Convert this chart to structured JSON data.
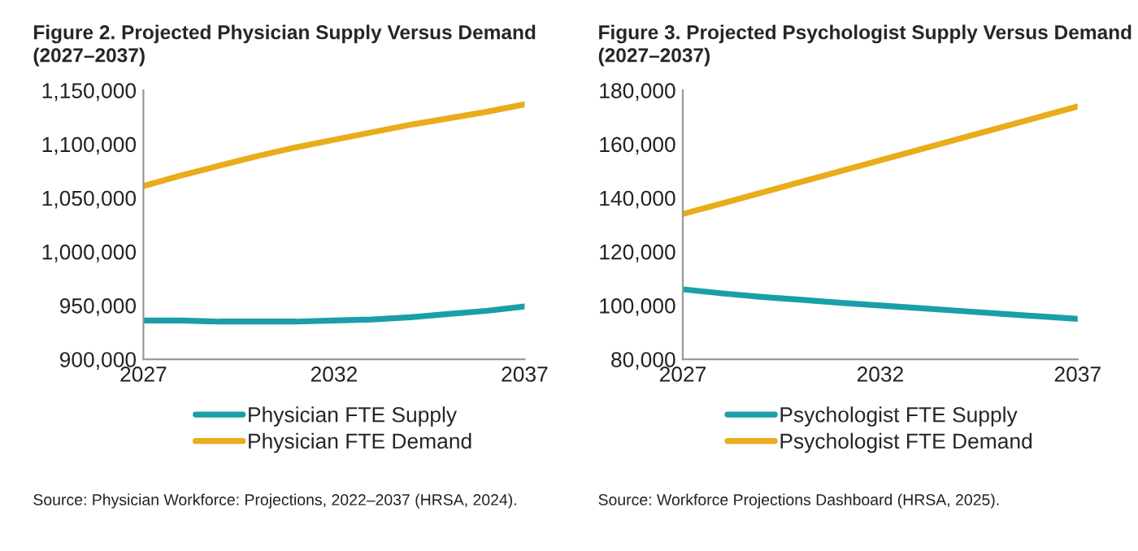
{
  "chart_data": [
    {
      "type": "line",
      "title": "Figure 2. Projected Physician Supply Versus Demand\n(2027–2037)",
      "x": [
        2027,
        2028,
        2029,
        2030,
        2031,
        2032,
        2033,
        2034,
        2035,
        2036,
        2037
      ],
      "series": [
        {
          "name": "Physician FTE Supply",
          "color": "#1a9fa8",
          "values": [
            936000,
            936000,
            935000,
            935000,
            935000,
            936000,
            937000,
            939000,
            942000,
            945000,
            949000
          ]
        },
        {
          "name": "Physician FTE Demand",
          "color": "#e9ac1a",
          "values": [
            1061000,
            1071000,
            1080000,
            1089000,
            1097000,
            1104000,
            1111000,
            1118000,
            1124000,
            1130000,
            1137000
          ]
        }
      ],
      "xlim": [
        2027,
        2037
      ],
      "xticks": [
        2027,
        2032,
        2037
      ],
      "ylim": [
        900000,
        1150000
      ],
      "yticks": [
        {
          "value": 900000,
          "label": "900,000"
        },
        {
          "value": 950000,
          "label": "950,000"
        },
        {
          "value": 1000000,
          "label": "1,000,000"
        },
        {
          "value": 1050000,
          "label": "1,050,000"
        },
        {
          "value": 1100000,
          "label": "1,100,000"
        },
        {
          "value": 1150000,
          "label": "1,150,000"
        }
      ],
      "grid": false,
      "legend": "bottom",
      "annotations": [
        "Source: Physician Workforce: Projections, 2022–2037 (HRSA, 2024)."
      ]
    },
    {
      "type": "line",
      "title": "Figure 3. Projected Psychologist Supply Versus Demand\n(2027–2037)",
      "x": [
        2027,
        2028,
        2029,
        2030,
        2031,
        2032,
        2033,
        2034,
        2035,
        2036,
        2037
      ],
      "series": [
        {
          "name": "Psychologist FTE Supply",
          "color": "#1a9fa8",
          "values": [
            106000,
            104500,
            103200,
            102100,
            101000,
            100000,
            99000,
            98000,
            97000,
            96000,
            95000
          ]
        },
        {
          "name": "Psychologist FTE Demand",
          "color": "#e9ac1a",
          "values": [
            134000,
            138000,
            142000,
            146000,
            150000,
            154000,
            158000,
            162000,
            166000,
            170000,
            174000
          ]
        }
      ],
      "xlim": [
        2027,
        2037
      ],
      "xticks": [
        2027,
        2032,
        2037
      ],
      "ylim": [
        80000,
        180000
      ],
      "yticks": [
        {
          "value": 80000,
          "label": "80,000"
        },
        {
          "value": 100000,
          "label": "100,000"
        },
        {
          "value": 120000,
          "label": "120,000"
        },
        {
          "value": 140000,
          "label": "140,000"
        },
        {
          "value": 160000,
          "label": "160,000"
        },
        {
          "value": 180000,
          "label": "180,000"
        }
      ],
      "grid": false,
      "legend": "bottom",
      "annotations": [
        "Source: Workforce Projections Dashboard (HRSA, 2025)."
      ]
    }
  ]
}
